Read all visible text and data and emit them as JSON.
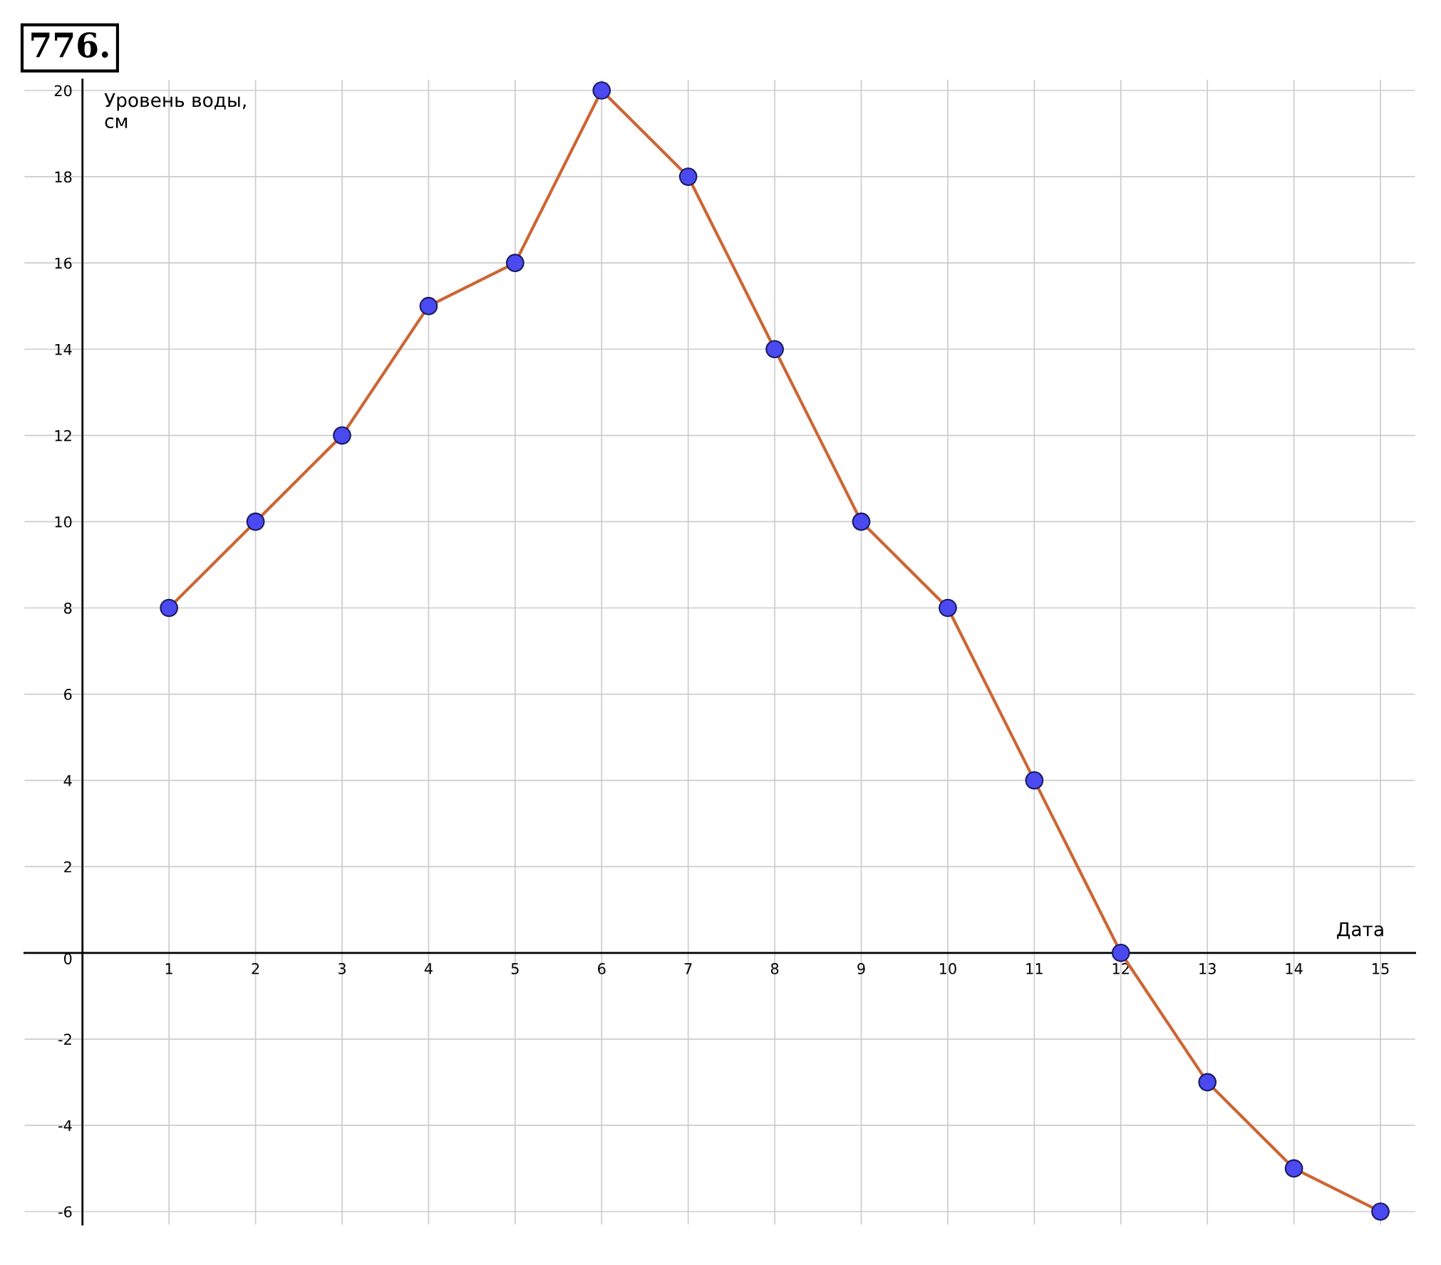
{
  "chart_data": {
    "type": "line",
    "title": "776.",
    "xlabel": "Дата",
    "ylabel": "Уровень воды,\nсм",
    "x": [
      1,
      2,
      3,
      4,
      5,
      6,
      7,
      8,
      9,
      10,
      11,
      12,
      13,
      14,
      15
    ],
    "series": [
      {
        "color": "#cc6633",
        "values": [
          8,
          10,
          12,
          15,
          16,
          20,
          18,
          14,
          10,
          8,
          4,
          0,
          -3,
          -5,
          -6
        ]
      }
    ],
    "xlim": [
      -0.67,
      15.4
    ],
    "ylim": [
      -6.3,
      20.25
    ],
    "xticks": [
      1,
      2,
      3,
      4,
      5,
      6,
      7,
      8,
      9,
      10,
      11,
      12,
      13,
      14,
      15
    ],
    "yticks": [
      -6,
      -4,
      -2,
      0,
      2,
      4,
      6,
      8,
      10,
      12,
      14,
      16,
      18,
      20
    ],
    "grid": true,
    "marker": "circle",
    "line_style": "solid",
    "legend": false
  }
}
